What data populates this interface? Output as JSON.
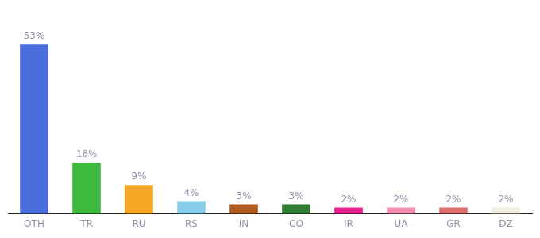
{
  "chart_data": {
    "type": "bar",
    "categories": [
      "OTH",
      "TR",
      "RU",
      "RS",
      "IN",
      "CO",
      "IR",
      "UA",
      "GR",
      "DZ"
    ],
    "values": [
      53,
      16,
      9,
      4,
      3,
      3,
      2,
      2,
      2,
      2
    ],
    "value_labels": [
      "53%",
      "16%",
      "9%",
      "4%",
      "3%",
      "3%",
      "2%",
      "2%",
      "2%",
      "2%"
    ],
    "data_labels": true,
    "colors": [
      "#4a6fdc",
      "#3dba3d",
      "#f5a623",
      "#87ceeb",
      "#b35a1f",
      "#2e7d32",
      "#e91e8c",
      "#f48fb1",
      "#e07070",
      "#f0ede0"
    ],
    "ylim": [
      0,
      62
    ],
    "grid": false,
    "tick_labels": "x"
  }
}
